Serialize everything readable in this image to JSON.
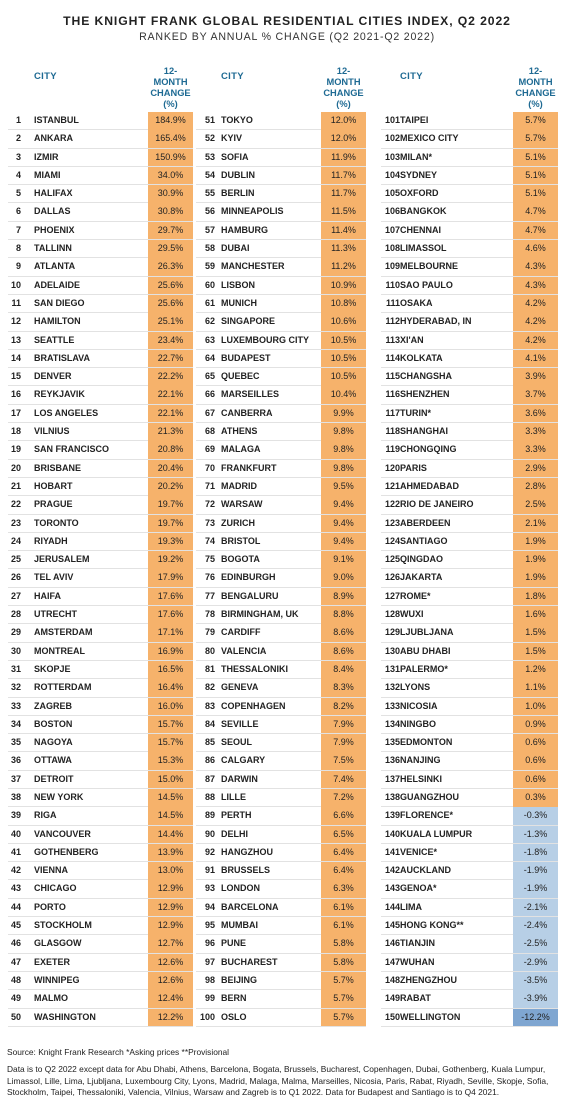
{
  "title": "THE KNIGHT FRANK GLOBAL RESIDENTIAL CITIES INDEX, Q2 2022",
  "subtitle": "RANKED BY ANNUAL % CHANGE (Q2 2021-Q2 2022)",
  "header": {
    "city": "CITY",
    "change_lines": [
      "12-",
      "MONTH",
      "CHANGE",
      "(%)"
    ]
  },
  "columns": [
    [
      {
        "rank": "1",
        "city": "ISTANBUL",
        "change": "184.9%"
      },
      {
        "rank": "2",
        "city": "ANKARA",
        "change": "165.4%"
      },
      {
        "rank": "3",
        "city": "IZMIR",
        "change": "150.9%"
      },
      {
        "rank": "4",
        "city": "MIAMI",
        "change": "34.0%"
      },
      {
        "rank": "5",
        "city": "HALIFAX",
        "change": "30.9%"
      },
      {
        "rank": "6",
        "city": "DALLAS",
        "change": "30.8%"
      },
      {
        "rank": "7",
        "city": "PHOENIX",
        "change": "29.7%"
      },
      {
        "rank": "8",
        "city": "TALLINN",
        "change": "29.5%"
      },
      {
        "rank": "9",
        "city": "ATLANTA",
        "change": "26.3%"
      },
      {
        "rank": "10",
        "city": "ADELAIDE",
        "change": "25.6%"
      },
      {
        "rank": "11",
        "city": "SAN DIEGO",
        "change": "25.6%"
      },
      {
        "rank": "12",
        "city": "HAMILTON",
        "change": "25.1%"
      },
      {
        "rank": "13",
        "city": "SEATTLE",
        "change": "23.4%"
      },
      {
        "rank": "14",
        "city": "BRATISLAVA",
        "change": "22.7%"
      },
      {
        "rank": "15",
        "city": "DENVER",
        "change": "22.2%"
      },
      {
        "rank": "16",
        "city": "REYKJAVIK",
        "change": "22.1%"
      },
      {
        "rank": "17",
        "city": "LOS ANGELES",
        "change": "22.1%"
      },
      {
        "rank": "18",
        "city": "VILNIUS",
        "change": "21.3%"
      },
      {
        "rank": "19",
        "city": "SAN FRANCISCO",
        "change": "20.8%"
      },
      {
        "rank": "20",
        "city": "BRISBANE",
        "change": "20.4%"
      },
      {
        "rank": "21",
        "city": "HOBART",
        "change": "20.2%"
      },
      {
        "rank": "22",
        "city": "PRAGUE",
        "change": "19.7%"
      },
      {
        "rank": "23",
        "city": "TORONTO",
        "change": "19.7%"
      },
      {
        "rank": "24",
        "city": "RIYADH",
        "change": "19.3%"
      },
      {
        "rank": "25",
        "city": "JERUSALEM",
        "change": "19.2%"
      },
      {
        "rank": "26",
        "city": "TEL AVIV",
        "change": "17.9%"
      },
      {
        "rank": "27",
        "city": "HAIFA",
        "change": "17.6%"
      },
      {
        "rank": "28",
        "city": "UTRECHT",
        "change": "17.6%"
      },
      {
        "rank": "29",
        "city": "AMSTERDAM",
        "change": "17.1%"
      },
      {
        "rank": "30",
        "city": "MONTREAL",
        "change": "16.9%"
      },
      {
        "rank": "31",
        "city": "SKOPJE",
        "change": "16.5%"
      },
      {
        "rank": "32",
        "city": "ROTTERDAM",
        "change": "16.4%"
      },
      {
        "rank": "33",
        "city": "ZAGREB",
        "change": "16.0%"
      },
      {
        "rank": "34",
        "city": "BOSTON",
        "change": "15.7%"
      },
      {
        "rank": "35",
        "city": "NAGOYA",
        "change": "15.7%"
      },
      {
        "rank": "36",
        "city": "OTTAWA",
        "change": "15.3%"
      },
      {
        "rank": "37",
        "city": "DETROIT",
        "change": "15.0%"
      },
      {
        "rank": "38",
        "city": "NEW YORK",
        "change": "14.5%"
      },
      {
        "rank": "39",
        "city": "RIGA",
        "change": "14.5%"
      },
      {
        "rank": "40",
        "city": "VANCOUVER",
        "change": "14.4%"
      },
      {
        "rank": "41",
        "city": "GOTHENBERG",
        "change": "13.9%"
      },
      {
        "rank": "42",
        "city": "VIENNA",
        "change": "13.0%"
      },
      {
        "rank": "43",
        "city": "CHICAGO",
        "change": "12.9%"
      },
      {
        "rank": "44",
        "city": "PORTO",
        "change": "12.9%"
      },
      {
        "rank": "45",
        "city": "STOCKHOLM",
        "change": "12.9%"
      },
      {
        "rank": "46",
        "city": "GLASGOW",
        "change": "12.7%"
      },
      {
        "rank": "47",
        "city": "EXETER",
        "change": "12.6%"
      },
      {
        "rank": "48",
        "city": "WINNIPEG",
        "change": "12.6%"
      },
      {
        "rank": "49",
        "city": "MALMO",
        "change": "12.4%"
      },
      {
        "rank": "50",
        "city": "WASHINGTON",
        "change": "12.2%"
      }
    ],
    [
      {
        "rank": "51",
        "city": "TOKYO",
        "change": "12.0%"
      },
      {
        "rank": "52",
        "city": "KYIV",
        "change": "12.0%"
      },
      {
        "rank": "53",
        "city": "SOFIA",
        "change": "11.9%"
      },
      {
        "rank": "54",
        "city": "DUBLIN",
        "change": "11.7%"
      },
      {
        "rank": "55",
        "city": "BERLIN",
        "change": "11.7%"
      },
      {
        "rank": "56",
        "city": "MINNEAPOLIS",
        "change": "11.5%"
      },
      {
        "rank": "57",
        "city": "HAMBURG",
        "change": "11.4%"
      },
      {
        "rank": "58",
        "city": "DUBAI",
        "change": "11.3%"
      },
      {
        "rank": "59",
        "city": "MANCHESTER",
        "change": "11.2%"
      },
      {
        "rank": "60",
        "city": "LISBON",
        "change": "10.9%"
      },
      {
        "rank": "61",
        "city": "MUNICH",
        "change": "10.8%"
      },
      {
        "rank": "62",
        "city": "SINGAPORE",
        "change": "10.6%"
      },
      {
        "rank": "63",
        "city": "LUXEMBOURG CITY",
        "change": "10.5%"
      },
      {
        "rank": "64",
        "city": "BUDAPEST",
        "change": "10.5%"
      },
      {
        "rank": "65",
        "city": "QUEBEC",
        "change": "10.5%"
      },
      {
        "rank": "66",
        "city": "MARSEILLES",
        "change": "10.4%"
      },
      {
        "rank": "67",
        "city": "CANBERRA",
        "change": "9.9%"
      },
      {
        "rank": "68",
        "city": "ATHENS",
        "change": "9.8%"
      },
      {
        "rank": "69",
        "city": "MALAGA",
        "change": "9.8%"
      },
      {
        "rank": "70",
        "city": "FRANKFURT",
        "change": "9.8%"
      },
      {
        "rank": "71",
        "city": "MADRID",
        "change": "9.5%"
      },
      {
        "rank": "72",
        "city": "WARSAW",
        "change": "9.4%"
      },
      {
        "rank": "73",
        "city": "ZURICH",
        "change": "9.4%"
      },
      {
        "rank": "74",
        "city": "BRISTOL",
        "change": "9.4%"
      },
      {
        "rank": "75",
        "city": "BOGOTA",
        "change": "9.1%"
      },
      {
        "rank": "76",
        "city": "EDINBURGH",
        "change": "9.0%"
      },
      {
        "rank": "77",
        "city": "BENGALURU",
        "change": "8.9%"
      },
      {
        "rank": "78",
        "city": "BIRMINGHAM, UK",
        "change": "8.8%"
      },
      {
        "rank": "79",
        "city": "CARDIFF",
        "change": "8.6%"
      },
      {
        "rank": "80",
        "city": "VALENCIA",
        "change": "8.6%"
      },
      {
        "rank": "81",
        "city": "THESSALONIKI",
        "change": "8.4%"
      },
      {
        "rank": "82",
        "city": "GENEVA",
        "change": "8.3%"
      },
      {
        "rank": "83",
        "city": "COPENHAGEN",
        "change": "8.2%"
      },
      {
        "rank": "84",
        "city": "SEVILLE",
        "change": "7.9%"
      },
      {
        "rank": "85",
        "city": "SEOUL",
        "change": "7.9%"
      },
      {
        "rank": "86",
        "city": "CALGARY",
        "change": "7.5%"
      },
      {
        "rank": "87",
        "city": "DARWIN",
        "change": "7.4%"
      },
      {
        "rank": "88",
        "city": "LILLE",
        "change": "7.2%"
      },
      {
        "rank": "89",
        "city": "PERTH",
        "change": "6.6%"
      },
      {
        "rank": "90",
        "city": "DELHI",
        "change": "6.5%"
      },
      {
        "rank": "92",
        "city": "HANGZHOU",
        "change": "6.4%"
      },
      {
        "rank": "91",
        "city": "BRUSSELS",
        "change": "6.4%"
      },
      {
        "rank": "93",
        "city": "LONDON",
        "change": "6.3%"
      },
      {
        "rank": "94",
        "city": "BARCELONA",
        "change": "6.1%"
      },
      {
        "rank": "95",
        "city": "MUMBAI",
        "change": "6.1%"
      },
      {
        "rank": "96",
        "city": "PUNE",
        "change": "5.8%"
      },
      {
        "rank": "97",
        "city": "BUCHAREST",
        "change": "5.8%"
      },
      {
        "rank": "98",
        "city": "BEIJING",
        "change": "5.7%"
      },
      {
        "rank": "99",
        "city": "BERN",
        "change": "5.7%"
      },
      {
        "rank": "100",
        "city": "OSLO",
        "change": "5.7%"
      }
    ],
    [
      {
        "rank": "101",
        "city": "TAIPEI",
        "change": "5.7%"
      },
      {
        "rank": "102",
        "city": "MEXICO CITY",
        "change": "5.7%"
      },
      {
        "rank": "103",
        "city": "MILAN*",
        "change": "5.1%"
      },
      {
        "rank": "104",
        "city": "SYDNEY",
        "change": "5.1%"
      },
      {
        "rank": "105",
        "city": "OXFORD",
        "change": "5.1%"
      },
      {
        "rank": "106",
        "city": "BANGKOK",
        "change": "4.7%"
      },
      {
        "rank": "107",
        "city": "CHENNAI",
        "change": "4.7%"
      },
      {
        "rank": "108",
        "city": "LIMASSOL",
        "change": "4.6%"
      },
      {
        "rank": "109",
        "city": "MELBOURNE",
        "change": "4.3%"
      },
      {
        "rank": "110",
        "city": "SAO PAULO",
        "change": "4.3%"
      },
      {
        "rank": "111",
        "city": "OSAKA",
        "change": "4.2%"
      },
      {
        "rank": "112",
        "city": "HYDERABAD, IN",
        "change": "4.2%"
      },
      {
        "rank": "113",
        "city": "XI'AN",
        "change": "4.2%"
      },
      {
        "rank": "114",
        "city": "KOLKATA",
        "change": "4.1%"
      },
      {
        "rank": "115",
        "city": "CHANGSHA",
        "change": "3.9%"
      },
      {
        "rank": "116",
        "city": "SHENZHEN",
        "change": "3.7%"
      },
      {
        "rank": "117",
        "city": "TURIN*",
        "change": "3.6%"
      },
      {
        "rank": "118",
        "city": "SHANGHAI",
        "change": "3.3%"
      },
      {
        "rank": "119",
        "city": "CHONGQING",
        "change": "3.3%"
      },
      {
        "rank": "120",
        "city": "PARIS",
        "change": "2.9%"
      },
      {
        "rank": "121",
        "city": "AHMEDABAD",
        "change": "2.8%"
      },
      {
        "rank": "122",
        "city": "RIO DE JANEIRO",
        "change": "2.5%"
      },
      {
        "rank": "123",
        "city": "ABERDEEN",
        "change": "2.1%"
      },
      {
        "rank": "124",
        "city": "SANTIAGO",
        "change": "1.9%"
      },
      {
        "rank": "125",
        "city": "QINGDAO",
        "change": "1.9%"
      },
      {
        "rank": "126",
        "city": "JAKARTA",
        "change": "1.9%"
      },
      {
        "rank": "127",
        "city": "ROME*",
        "change": "1.8%"
      },
      {
        "rank": "128",
        "city": "WUXI",
        "change": "1.6%"
      },
      {
        "rank": "129",
        "city": "LJUBLJANA",
        "change": "1.5%"
      },
      {
        "rank": "130",
        "city": "ABU DHABI",
        "change": "1.5%"
      },
      {
        "rank": "131",
        "city": "PALERMO*",
        "change": "1.2%"
      },
      {
        "rank": "132",
        "city": "LYONS",
        "change": "1.1%"
      },
      {
        "rank": "133",
        "city": "NICOSIA",
        "change": "1.0%"
      },
      {
        "rank": "134",
        "city": "NINGBO",
        "change": "0.9%"
      },
      {
        "rank": "135",
        "city": "EDMONTON",
        "change": "0.6%"
      },
      {
        "rank": "136",
        "city": "NANJING",
        "change": "0.6%"
      },
      {
        "rank": "137",
        "city": "HELSINKI",
        "change": "0.6%"
      },
      {
        "rank": "138",
        "city": "GUANGZHOU",
        "change": "0.3%"
      },
      {
        "rank": "139",
        "city": "FLORENCE*",
        "change": "-0.3%"
      },
      {
        "rank": "140",
        "city": "KUALA LUMPUR",
        "change": "-1.3%"
      },
      {
        "rank": "141",
        "city": "VENICE*",
        "change": "-1.8%"
      },
      {
        "rank": "142",
        "city": "AUCKLAND",
        "change": "-1.9%"
      },
      {
        "rank": "143",
        "city": "GENOA*",
        "change": "-1.9%"
      },
      {
        "rank": "144",
        "city": "LIMA",
        "change": "-2.1%"
      },
      {
        "rank": "145",
        "city": "HONG KONG**",
        "change": "-2.4%"
      },
      {
        "rank": "146",
        "city": "TIANJIN",
        "change": "-2.5%"
      },
      {
        "rank": "147",
        "city": "WUHAN",
        "change": "-2.9%"
      },
      {
        "rank": "148",
        "city": "ZHENGZHOU",
        "change": "-3.5%"
      },
      {
        "rank": "149",
        "city": "RABAT",
        "change": "-3.9%"
      },
      {
        "rank": "150",
        "city": "WELLINGTON",
        "change": "-12.2%"
      }
    ]
  ],
  "footer": {
    "source": "Source: Knight Frank Research   *Asking prices **Provisional",
    "note": "Data is to Q2 2022 except data for Abu Dhabi, Athens, Barcelona, Bogata, Brussels, Bucharest, Copenhagen, Dubai, Gothenberg, Kuala Lumpur, Limassol, Lille, Lima, Ljubljana, Luxembourg City, Lyons, Madrid, Malaga, Malma, Marseilles, Nicosia, Paris, Rabat, Riyadh, Seville, Skopje, Sofia, Stockholm, Taipei, Thessaloniki, Valencia, Vilnius, Warsaw and Zagreb is to Q1 2022. Data for Budapest and Santiago is to Q4 2021."
  },
  "colors": {
    "positive_cell": "#f6b26b",
    "negative_cell": "#b7cfe6",
    "strong_negative_cell": "#7fa6d1",
    "header_text": "#1e6a93"
  }
}
